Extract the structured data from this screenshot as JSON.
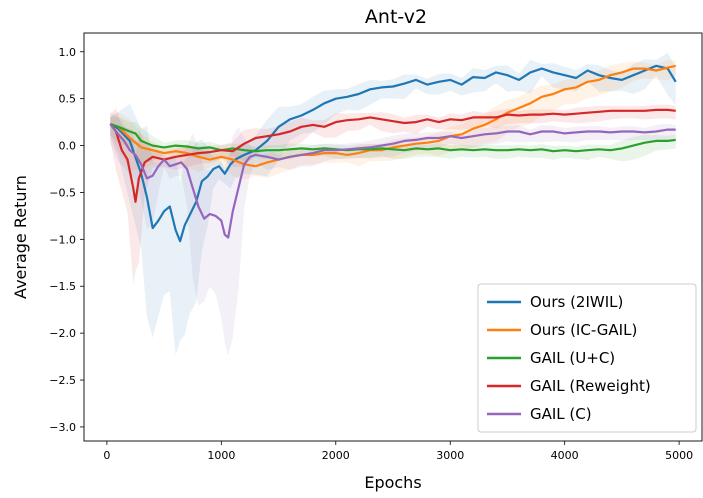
{
  "chart_data": {
    "type": "line",
    "title": "Ant-v2",
    "xlabel": "Epochs",
    "ylabel": "Average Return",
    "xlim": [
      -200,
      5200
    ],
    "ylim": [
      -3.15,
      1.2
    ],
    "x_ticks": [
      0,
      1000,
      2000,
      3000,
      4000,
      5000
    ],
    "x_tick_labels": [
      "0",
      "1000",
      "2000",
      "3000",
      "4000",
      "5000"
    ],
    "y_ticks": [
      1.0,
      0.5,
      0.0,
      -0.5,
      -1.0,
      -1.5,
      -2.0,
      -2.5,
      -3.0
    ],
    "y_tick_labels": [
      "1.0",
      "0.5",
      "0.0",
      "−0.5",
      "−1.0",
      "−1.5",
      "−2.0",
      "−2.5",
      "−3.0"
    ],
    "grid": false,
    "legend_position": "bottom-right",
    "series": [
      {
        "name": "Ours (2IWIL)",
        "color": "#1f77b4",
        "points": [
          [
            30,
            0.23
          ],
          [
            100,
            0.18
          ],
          [
            200,
            0.05
          ],
          [
            300,
            -0.3
          ],
          [
            350,
            -0.55
          ],
          [
            400,
            -0.88
          ],
          [
            450,
            -0.8
          ],
          [
            500,
            -0.7
          ],
          [
            550,
            -0.65
          ],
          [
            600,
            -0.9
          ],
          [
            640,
            -1.02
          ],
          [
            680,
            -0.85
          ],
          [
            720,
            -0.75
          ],
          [
            780,
            -0.6
          ],
          [
            830,
            -0.38
          ],
          [
            880,
            -0.33
          ],
          [
            930,
            -0.25
          ],
          [
            980,
            -0.22
          ],
          [
            1030,
            -0.3
          ],
          [
            1080,
            -0.2
          ],
          [
            1120,
            -0.15
          ],
          [
            1200,
            -0.1
          ],
          [
            1300,
            -0.05
          ],
          [
            1400,
            0.05
          ],
          [
            1500,
            0.2
          ],
          [
            1600,
            0.28
          ],
          [
            1700,
            0.32
          ],
          [
            1800,
            0.38
          ],
          [
            1900,
            0.45
          ],
          [
            2000,
            0.5
          ],
          [
            2100,
            0.52
          ],
          [
            2200,
            0.55
          ],
          [
            2300,
            0.6
          ],
          [
            2400,
            0.62
          ],
          [
            2500,
            0.63
          ],
          [
            2600,
            0.66
          ],
          [
            2700,
            0.7
          ],
          [
            2800,
            0.65
          ],
          [
            2900,
            0.68
          ],
          [
            3000,
            0.7
          ],
          [
            3100,
            0.65
          ],
          [
            3200,
            0.73
          ],
          [
            3300,
            0.72
          ],
          [
            3400,
            0.78
          ],
          [
            3500,
            0.75
          ],
          [
            3600,
            0.7
          ],
          [
            3700,
            0.78
          ],
          [
            3800,
            0.82
          ],
          [
            3900,
            0.78
          ],
          [
            4000,
            0.75
          ],
          [
            4100,
            0.72
          ],
          [
            4200,
            0.8
          ],
          [
            4300,
            0.75
          ],
          [
            4400,
            0.72
          ],
          [
            4500,
            0.7
          ],
          [
            4600,
            0.75
          ],
          [
            4700,
            0.8
          ],
          [
            4800,
            0.85
          ],
          [
            4900,
            0.82
          ],
          [
            4970,
            0.68
          ]
        ]
      },
      {
        "name": "Ours (IC-GAIL)",
        "color": "#ff7f0e",
        "points": [
          [
            30,
            0.23
          ],
          [
            100,
            0.2
          ],
          [
            200,
            0.08
          ],
          [
            300,
            -0.02
          ],
          [
            400,
            -0.05
          ],
          [
            500,
            -0.08
          ],
          [
            600,
            -0.06
          ],
          [
            700,
            -0.08
          ],
          [
            800,
            -0.12
          ],
          [
            900,
            -0.15
          ],
          [
            1000,
            -0.12
          ],
          [
            1100,
            -0.15
          ],
          [
            1200,
            -0.2
          ],
          [
            1300,
            -0.22
          ],
          [
            1400,
            -0.18
          ],
          [
            1500,
            -0.15
          ],
          [
            1600,
            -0.12
          ],
          [
            1700,
            -0.1
          ],
          [
            1800,
            -0.1
          ],
          [
            1900,
            -0.08
          ],
          [
            2000,
            -0.08
          ],
          [
            2100,
            -0.1
          ],
          [
            2200,
            -0.08
          ],
          [
            2300,
            -0.05
          ],
          [
            2400,
            -0.05
          ],
          [
            2500,
            -0.02
          ],
          [
            2600,
            0.0
          ],
          [
            2700,
            0.02
          ],
          [
            2800,
            0.03
          ],
          [
            2900,
            0.05
          ],
          [
            3000,
            0.1
          ],
          [
            3100,
            0.12
          ],
          [
            3200,
            0.18
          ],
          [
            3300,
            0.22
          ],
          [
            3400,
            0.28
          ],
          [
            3500,
            0.35
          ],
          [
            3600,
            0.4
          ],
          [
            3700,
            0.45
          ],
          [
            3800,
            0.52
          ],
          [
            3900,
            0.55
          ],
          [
            4000,
            0.6
          ],
          [
            4100,
            0.62
          ],
          [
            4200,
            0.68
          ],
          [
            4300,
            0.7
          ],
          [
            4400,
            0.75
          ],
          [
            4500,
            0.78
          ],
          [
            4600,
            0.82
          ],
          [
            4700,
            0.82
          ],
          [
            4800,
            0.8
          ],
          [
            4900,
            0.83
          ],
          [
            4970,
            0.85
          ]
        ]
      },
      {
        "name": "GAIL (U+C)",
        "color": "#2ca02c",
        "points": [
          [
            30,
            0.23
          ],
          [
            100,
            0.2
          ],
          [
            200,
            0.15
          ],
          [
            250,
            0.13
          ],
          [
            300,
            0.05
          ],
          [
            400,
            0.0
          ],
          [
            500,
            -0.02
          ],
          [
            600,
            0.0
          ],
          [
            700,
            -0.01
          ],
          [
            800,
            -0.03
          ],
          [
            900,
            -0.02
          ],
          [
            1000,
            -0.05
          ],
          [
            1100,
            -0.03
          ],
          [
            1200,
            -0.05
          ],
          [
            1300,
            -0.06
          ],
          [
            1400,
            -0.05
          ],
          [
            1500,
            -0.05
          ],
          [
            1600,
            -0.04
          ],
          [
            1700,
            -0.03
          ],
          [
            1800,
            -0.04
          ],
          [
            1900,
            -0.03
          ],
          [
            2000,
            -0.04
          ],
          [
            2100,
            -0.05
          ],
          [
            2200,
            -0.04
          ],
          [
            2300,
            -0.04
          ],
          [
            2400,
            -0.03
          ],
          [
            2500,
            -0.04
          ],
          [
            2600,
            -0.05
          ],
          [
            2700,
            -0.03
          ],
          [
            2800,
            -0.04
          ],
          [
            2900,
            -0.03
          ],
          [
            3000,
            -0.05
          ],
          [
            3100,
            -0.04
          ],
          [
            3200,
            -0.05
          ],
          [
            3300,
            -0.04
          ],
          [
            3400,
            -0.05
          ],
          [
            3500,
            -0.05
          ],
          [
            3600,
            -0.04
          ],
          [
            3700,
            -0.05
          ],
          [
            3800,
            -0.04
          ],
          [
            3900,
            -0.06
          ],
          [
            4000,
            -0.05
          ],
          [
            4100,
            -0.06
          ],
          [
            4200,
            -0.05
          ],
          [
            4300,
            -0.04
          ],
          [
            4400,
            -0.05
          ],
          [
            4500,
            -0.03
          ],
          [
            4600,
            0.0
          ],
          [
            4700,
            0.03
          ],
          [
            4800,
            0.05
          ],
          [
            4900,
            0.05
          ],
          [
            4970,
            0.06
          ]
        ]
      },
      {
        "name": "GAIL (Reweight)",
        "color": "#d62728",
        "points": [
          [
            30,
            0.23
          ],
          [
            80,
            0.15
          ],
          [
            130,
            -0.05
          ],
          [
            180,
            -0.15
          ],
          [
            230,
            -0.45
          ],
          [
            250,
            -0.6
          ],
          [
            280,
            -0.35
          ],
          [
            330,
            -0.18
          ],
          [
            400,
            -0.12
          ],
          [
            500,
            -0.15
          ],
          [
            600,
            -0.12
          ],
          [
            700,
            -0.1
          ],
          [
            800,
            -0.08
          ],
          [
            900,
            -0.07
          ],
          [
            1000,
            -0.05
          ],
          [
            1100,
            -0.06
          ],
          [
            1200,
            0.02
          ],
          [
            1300,
            0.08
          ],
          [
            1400,
            0.1
          ],
          [
            1500,
            0.12
          ],
          [
            1600,
            0.15
          ],
          [
            1700,
            0.2
          ],
          [
            1800,
            0.22
          ],
          [
            1900,
            0.2
          ],
          [
            2000,
            0.25
          ],
          [
            2100,
            0.27
          ],
          [
            2200,
            0.28
          ],
          [
            2300,
            0.3
          ],
          [
            2400,
            0.28
          ],
          [
            2500,
            0.26
          ],
          [
            2600,
            0.24
          ],
          [
            2700,
            0.25
          ],
          [
            2800,
            0.28
          ],
          [
            2900,
            0.25
          ],
          [
            3000,
            0.28
          ],
          [
            3100,
            0.27
          ],
          [
            3200,
            0.3
          ],
          [
            3300,
            0.3
          ],
          [
            3400,
            0.3
          ],
          [
            3500,
            0.33
          ],
          [
            3600,
            0.32
          ],
          [
            3700,
            0.33
          ],
          [
            3800,
            0.33
          ],
          [
            3900,
            0.34
          ],
          [
            4000,
            0.33
          ],
          [
            4100,
            0.34
          ],
          [
            4200,
            0.35
          ],
          [
            4300,
            0.36
          ],
          [
            4400,
            0.37
          ],
          [
            4500,
            0.37
          ],
          [
            4600,
            0.37
          ],
          [
            4700,
            0.37
          ],
          [
            4800,
            0.38
          ],
          [
            4900,
            0.38
          ],
          [
            4970,
            0.37
          ]
        ]
      },
      {
        "name": "GAIL (C)",
        "color": "#9467bd",
        "points": [
          [
            30,
            0.23
          ],
          [
            100,
            0.12
          ],
          [
            150,
            0.05
          ],
          [
            200,
            -0.05
          ],
          [
            250,
            -0.1
          ],
          [
            300,
            -0.2
          ],
          [
            350,
            -0.35
          ],
          [
            400,
            -0.32
          ],
          [
            450,
            -0.22
          ],
          [
            500,
            -0.15
          ],
          [
            550,
            -0.22
          ],
          [
            600,
            -0.2
          ],
          [
            650,
            -0.18
          ],
          [
            700,
            -0.25
          ],
          [
            750,
            -0.45
          ],
          [
            800,
            -0.65
          ],
          [
            850,
            -0.78
          ],
          [
            900,
            -0.73
          ],
          [
            950,
            -0.75
          ],
          [
            1000,
            -0.8
          ],
          [
            1030,
            -0.95
          ],
          [
            1060,
            -0.98
          ],
          [
            1100,
            -0.7
          ],
          [
            1150,
            -0.45
          ],
          [
            1200,
            -0.2
          ],
          [
            1250,
            -0.12
          ],
          [
            1300,
            -0.1
          ],
          [
            1400,
            -0.12
          ],
          [
            1500,
            -0.15
          ],
          [
            1600,
            -0.12
          ],
          [
            1700,
            -0.1
          ],
          [
            1800,
            -0.08
          ],
          [
            1900,
            -0.05
          ],
          [
            2000,
            -0.05
          ],
          [
            2100,
            -0.04
          ],
          [
            2200,
            -0.03
          ],
          [
            2300,
            -0.02
          ],
          [
            2400,
            0.0
          ],
          [
            2500,
            0.02
          ],
          [
            2600,
            0.05
          ],
          [
            2700,
            0.06
          ],
          [
            2800,
            0.08
          ],
          [
            2900,
            0.08
          ],
          [
            3000,
            0.1
          ],
          [
            3100,
            0.08
          ],
          [
            3200,
            0.1
          ],
          [
            3300,
            0.12
          ],
          [
            3400,
            0.13
          ],
          [
            3500,
            0.15
          ],
          [
            3600,
            0.15
          ],
          [
            3700,
            0.12
          ],
          [
            3800,
            0.15
          ],
          [
            3900,
            0.15
          ],
          [
            4000,
            0.13
          ],
          [
            4100,
            0.14
          ],
          [
            4200,
            0.15
          ],
          [
            4300,
            0.15
          ],
          [
            4400,
            0.14
          ],
          [
            4500,
            0.15
          ],
          [
            4600,
            0.15
          ],
          [
            4700,
            0.14
          ],
          [
            4800,
            0.15
          ],
          [
            4900,
            0.17
          ],
          [
            4970,
            0.17
          ]
        ]
      }
    ]
  }
}
